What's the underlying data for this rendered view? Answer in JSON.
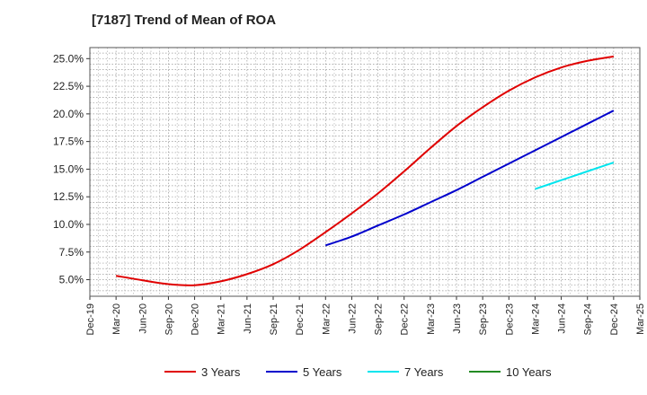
{
  "chart_data": {
    "type": "line",
    "title": "[7187]  Trend of Mean of ROA",
    "xlabel": "",
    "ylabel": "",
    "x_ticks": [
      "Dec-19",
      "Mar-20",
      "Jun-20",
      "Sep-20",
      "Dec-20",
      "Mar-21",
      "Jun-21",
      "Sep-21",
      "Dec-21",
      "Mar-22",
      "Jun-22",
      "Sep-22",
      "Dec-22",
      "Mar-23",
      "Jun-23",
      "Sep-23",
      "Dec-23",
      "Mar-24",
      "Jun-24",
      "Sep-24",
      "Dec-24",
      "Mar-25"
    ],
    "y_ticks": [
      "5.0%",
      "7.5%",
      "10.0%",
      "12.5%",
      "15.0%",
      "17.5%",
      "20.0%",
      "22.5%",
      "25.0%"
    ],
    "ylim": [
      3.5,
      26.0
    ],
    "grid": true,
    "legend_position": "bottom",
    "series": [
      {
        "name": "3 Years",
        "color": "#e00000",
        "x": [
          "Mar-20",
          "Jun-20",
          "Sep-20",
          "Dec-20",
          "Mar-21",
          "Jun-21",
          "Sep-21",
          "Dec-21",
          "Mar-22",
          "Jun-22",
          "Sep-22",
          "Dec-22",
          "Mar-23",
          "Jun-23",
          "Sep-23",
          "Dec-23",
          "Mar-24",
          "Jun-24",
          "Sep-24",
          "Dec-24"
        ],
        "values": [
          5.35,
          4.95,
          4.6,
          4.5,
          4.85,
          5.5,
          6.4,
          7.7,
          9.3,
          11.0,
          12.8,
          14.8,
          16.9,
          18.9,
          20.6,
          22.1,
          23.3,
          24.2,
          24.8,
          25.2
        ]
      },
      {
        "name": "5 Years",
        "color": "#0000cc",
        "x": [
          "Mar-22",
          "Jun-22",
          "Sep-22",
          "Dec-22",
          "Mar-23",
          "Jun-23",
          "Sep-23",
          "Dec-23",
          "Mar-24",
          "Jun-24",
          "Sep-24",
          "Dec-24"
        ],
        "values": [
          8.1,
          8.9,
          9.9,
          10.9,
          12.0,
          13.1,
          14.3,
          15.5,
          16.7,
          17.9,
          19.1,
          20.3
        ]
      },
      {
        "name": "7 Years",
        "color": "#00e5ee",
        "x": [
          "Mar-24",
          "Jun-24",
          "Sep-24",
          "Dec-24"
        ],
        "values": [
          13.2,
          14.0,
          14.8,
          15.6
        ]
      },
      {
        "name": "10 Years",
        "color": "#228b22",
        "x": [],
        "values": []
      }
    ]
  }
}
